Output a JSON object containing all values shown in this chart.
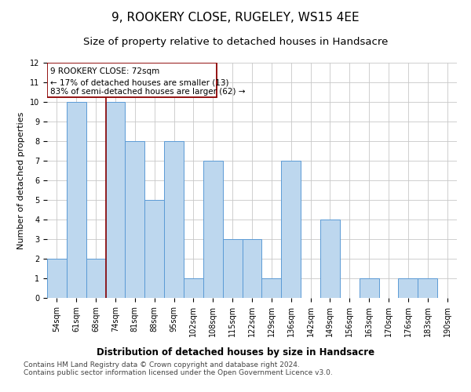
{
  "title": "9, ROOKERY CLOSE, RUGELEY, WS15 4EE",
  "subtitle": "Size of property relative to detached houses in Handsacre",
  "xlabel": "Distribution of detached houses by size in Handsacre",
  "ylabel": "Number of detached properties",
  "categories": [
    "54sqm",
    "61sqm",
    "68sqm",
    "74sqm",
    "81sqm",
    "88sqm",
    "95sqm",
    "102sqm",
    "108sqm",
    "115sqm",
    "122sqm",
    "129sqm",
    "136sqm",
    "142sqm",
    "149sqm",
    "156sqm",
    "163sqm",
    "170sqm",
    "176sqm",
    "183sqm",
    "190sqm"
  ],
  "values": [
    2,
    10,
    2,
    10,
    8,
    5,
    8,
    1,
    7,
    3,
    3,
    1,
    7,
    0,
    4,
    0,
    1,
    0,
    1,
    1,
    0
  ],
  "bar_color": "#BDD7EE",
  "bar_edge_color": "#5B9BD5",
  "red_line_x": 2.5,
  "annotation_line1": "9 ROOKERY CLOSE: 72sqm",
  "annotation_line2": "← 17% of detached houses are smaller (13)",
  "annotation_line3": "83% of semi-detached houses are larger (62) →",
  "ylim": [
    0,
    12
  ],
  "yticks": [
    0,
    1,
    2,
    3,
    4,
    5,
    6,
    7,
    8,
    9,
    10,
    11,
    12
  ],
  "footer_text": "Contains HM Land Registry data © Crown copyright and database right 2024.\nContains public sector information licensed under the Open Government Licence v3.0.",
  "background_color": "#FFFFFF",
  "grid_color": "#C8C8C8",
  "title_fontsize": 11,
  "subtitle_fontsize": 9.5,
  "xlabel_fontsize": 8.5,
  "ylabel_fontsize": 8,
  "tick_fontsize": 7,
  "annotation_fontsize": 7.5,
  "footer_fontsize": 6.5
}
